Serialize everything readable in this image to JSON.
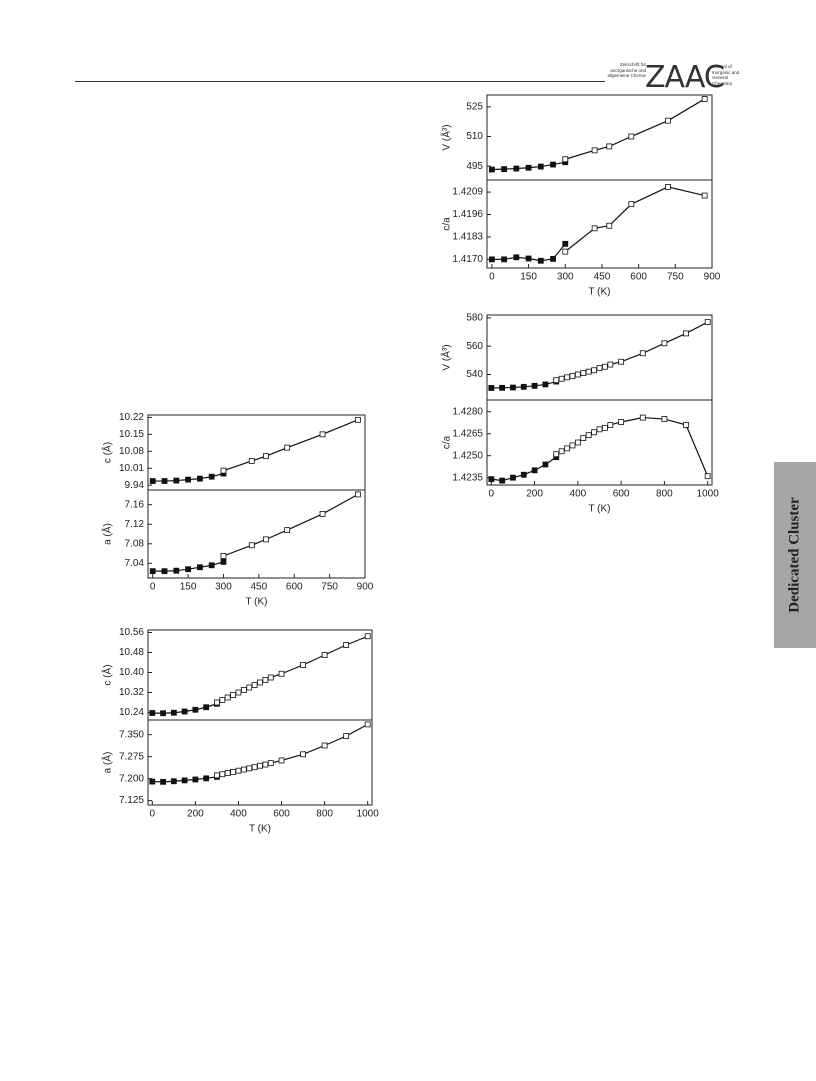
{
  "header": {
    "logo_left": "Zeitschrift für anorganische und allgemeine Chemie",
    "logo": "ZAAC",
    "logo_right": "Journal of Inorganic and General Chemistry"
  },
  "side_tab": "Dedicated Cluster",
  "chart_data": [
    {
      "type": "line",
      "ylabel": "V (Å³)",
      "xlim": [
        -20,
        900
      ],
      "ylim": [
        488,
        531
      ],
      "yticks": [
        495,
        510,
        525
      ],
      "series": [
        {
          "color": "#111111",
          "marker": "filled",
          "x": [
            0,
            50,
            100,
            150,
            200,
            250,
            300
          ],
          "values": [
            493.3,
            493.5,
            493.8,
            494.2,
            494.8,
            495.8,
            497
          ]
        },
        {
          "color": "#111111",
          "marker": "open",
          "x": [
            300,
            420,
            480,
            570,
            720,
            870
          ],
          "values": [
            498.5,
            503,
            505,
            510,
            518,
            529
          ]
        }
      ]
    },
    {
      "type": "line",
      "ylabel": "c/a",
      "xlabel": "T (K)",
      "xlim": [
        -20,
        900
      ],
      "xticks": [
        0,
        150,
        300,
        450,
        600,
        750,
        900
      ],
      "ylim": [
        1.4165,
        1.4216
      ],
      "yticks": [
        {
          "value": 1.417,
          "label": "1.4170"
        },
        1.4183,
        1.4196,
        1.4209
      ],
      "series": [
        {
          "color": "#111111",
          "marker": "filled",
          "x": [
            0,
            50,
            100,
            150,
            200,
            250,
            300
          ],
          "values": [
            1.417,
            1.417,
            1.41712,
            1.41705,
            1.41692,
            1.41703,
            1.4179
          ]
        },
        {
          "color": "#111111",
          "marker": "open",
          "x": [
            300,
            420,
            480,
            570,
            720,
            870
          ],
          "values": [
            1.41745,
            1.4188,
            1.41895,
            1.4202,
            1.4212,
            1.4207
          ]
        }
      ]
    },
    {
      "type": "line",
      "ylabel": "V (Å³)",
      "xlim": [
        -20,
        1020
      ],
      "ylim": [
        522,
        582
      ],
      "yticks": [
        540,
        560,
        580
      ],
      "series": [
        {
          "color": "#111111",
          "marker": "filled",
          "x": [
            0,
            50,
            100,
            150,
            200,
            250,
            300
          ],
          "values": [
            530.5,
            530.6,
            530.8,
            531.3,
            532,
            533,
            535
          ]
        },
        {
          "color": "#111111",
          "marker": "open",
          "x": [
            300,
            325,
            350,
            375,
            400,
            425,
            450,
            475,
            500,
            525,
            550,
            600,
            700,
            800,
            900,
            1000
          ],
          "values": [
            536,
            537,
            538,
            539,
            540,
            541,
            542,
            543,
            544.5,
            545.5,
            547,
            549,
            555,
            562,
            569,
            577
          ]
        }
      ]
    },
    {
      "type": "line",
      "ylabel": "c/a",
      "xlabel": "T (K)",
      "xlim": [
        -20,
        1020
      ],
      "xticks": [
        0,
        200,
        400,
        600,
        800,
        1000
      ],
      "ylim": [
        1.423,
        1.4288
      ],
      "yticks": [
        1.4235,
        {
          "value": 1.425,
          "label": "1.4250"
        },
        1.4265,
        {
          "value": 1.428,
          "label": "1.4280"
        }
      ],
      "series": [
        {
          "color": "#111111",
          "marker": "filled",
          "x": [
            0,
            50,
            100,
            150,
            200,
            250,
            300
          ],
          "values": [
            1.4234,
            1.4233,
            1.4235,
            1.4237,
            1.424,
            1.4244,
            1.4249
          ]
        },
        {
          "color": "#111111",
          "marker": "open",
          "x": [
            300,
            325,
            350,
            375,
            400,
            425,
            450,
            475,
            500,
            525,
            550,
            600,
            700,
            800,
            900,
            1000
          ],
          "values": [
            1.4251,
            1.4253,
            1.4255,
            1.4257,
            1.4259,
            1.4262,
            1.4264,
            1.4266,
            1.4268,
            1.4269,
            1.4271,
            1.4273,
            1.4276,
            1.4275,
            1.4271,
            1.4236
          ]
        }
      ]
    },
    {
      "type": "line",
      "ylabel": "c (Å)",
      "xlim": [
        -20,
        900
      ],
      "ylim": [
        9.92,
        10.23
      ],
      "yticks": [
        9.94,
        10.01,
        10.08,
        10.15,
        10.22
      ],
      "series": [
        {
          "color": "#111111",
          "marker": "filled",
          "x": [
            0,
            50,
            100,
            150,
            200,
            250,
            300
          ],
          "values": [
            9.957,
            9.957,
            9.959,
            9.963,
            9.967,
            9.975,
            9.988
          ]
        },
        {
          "color": "#111111",
          "marker": "open",
          "x": [
            300,
            420,
            480,
            570,
            720,
            870
          ],
          "values": [
            10.0,
            10.04,
            10.06,
            10.095,
            10.15,
            10.21
          ]
        }
      ]
    },
    {
      "type": "line",
      "ylabel": "a (Å)",
      "xlabel": "T (K)",
      "xlim": [
        -20,
        900
      ],
      "xticks": [
        0,
        150,
        300,
        450,
        600,
        750,
        900
      ],
      "ylim": [
        7.01,
        7.19
      ],
      "yticks": [
        7.04,
        7.08,
        7.12,
        7.16
      ],
      "series": [
        {
          "color": "#111111",
          "marker": "filled",
          "x": [
            0,
            50,
            100,
            150,
            200,
            250,
            300
          ],
          "values": [
            7.024,
            7.024,
            7.025,
            7.028,
            7.032,
            7.036,
            7.043
          ]
        },
        {
          "color": "#111111",
          "marker": "open",
          "x": [
            300,
            420,
            480,
            570,
            720,
            870
          ],
          "values": [
            7.055,
            7.077,
            7.089,
            7.108,
            7.141,
            7.181
          ]
        }
      ]
    },
    {
      "type": "line",
      "ylabel": "c (Å)",
      "xlim": [
        -20,
        1020
      ],
      "ylim": [
        10.21,
        10.57
      ],
      "yticks": [
        10.24,
        10.32,
        {
          "value": 10.4,
          "label": "10.40"
        },
        10.48,
        10.56
      ],
      "series": [
        {
          "color": "#111111",
          "marker": "filled",
          "x": [
            0,
            50,
            100,
            150,
            200,
            250,
            300
          ],
          "values": [
            10.238,
            10.237,
            10.239,
            10.244,
            10.251,
            10.261,
            10.275
          ]
        },
        {
          "color": "#111111",
          "marker": "open",
          "x": [
            300,
            325,
            350,
            375,
            400,
            425,
            450,
            475,
            500,
            525,
            550,
            600,
            700,
            800,
            900,
            1000
          ],
          "values": [
            10.28,
            10.29,
            10.3,
            10.31,
            10.32,
            10.33,
            10.34,
            10.35,
            10.36,
            10.37,
            10.38,
            10.395,
            10.43,
            10.47,
            10.51,
            10.545
          ]
        }
      ]
    },
    {
      "type": "line",
      "ylabel": "a (Å)",
      "xlabel": "T (K)",
      "xlim": [
        -20,
        1020
      ],
      "xticks": [
        0,
        200,
        400,
        600,
        800,
        1000
      ],
      "ylim": [
        7.11,
        7.4
      ],
      "yticks": [
        7.125,
        {
          "value": 7.2,
          "label": "7.200"
        },
        7.275,
        {
          "value": 7.35,
          "label": "7.350"
        }
      ],
      "series": [
        {
          "color": "#111111",
          "marker": "filled",
          "x": [
            0,
            50,
            100,
            150,
            200,
            250,
            300
          ],
          "values": [
            7.19,
            7.189,
            7.191,
            7.194,
            7.197,
            7.201,
            7.206
          ]
        },
        {
          "color": "#111111",
          "marker": "open",
          "x": [
            300,
            325,
            350,
            375,
            400,
            425,
            450,
            475,
            500,
            525,
            550,
            600,
            700,
            800,
            900,
            1000
          ],
          "values": [
            7.211,
            7.215,
            7.219,
            7.223,
            7.227,
            7.231,
            7.235,
            7.239,
            7.244,
            7.248,
            7.253,
            7.262,
            7.283,
            7.313,
            7.345,
            7.385
          ]
        }
      ]
    }
  ]
}
